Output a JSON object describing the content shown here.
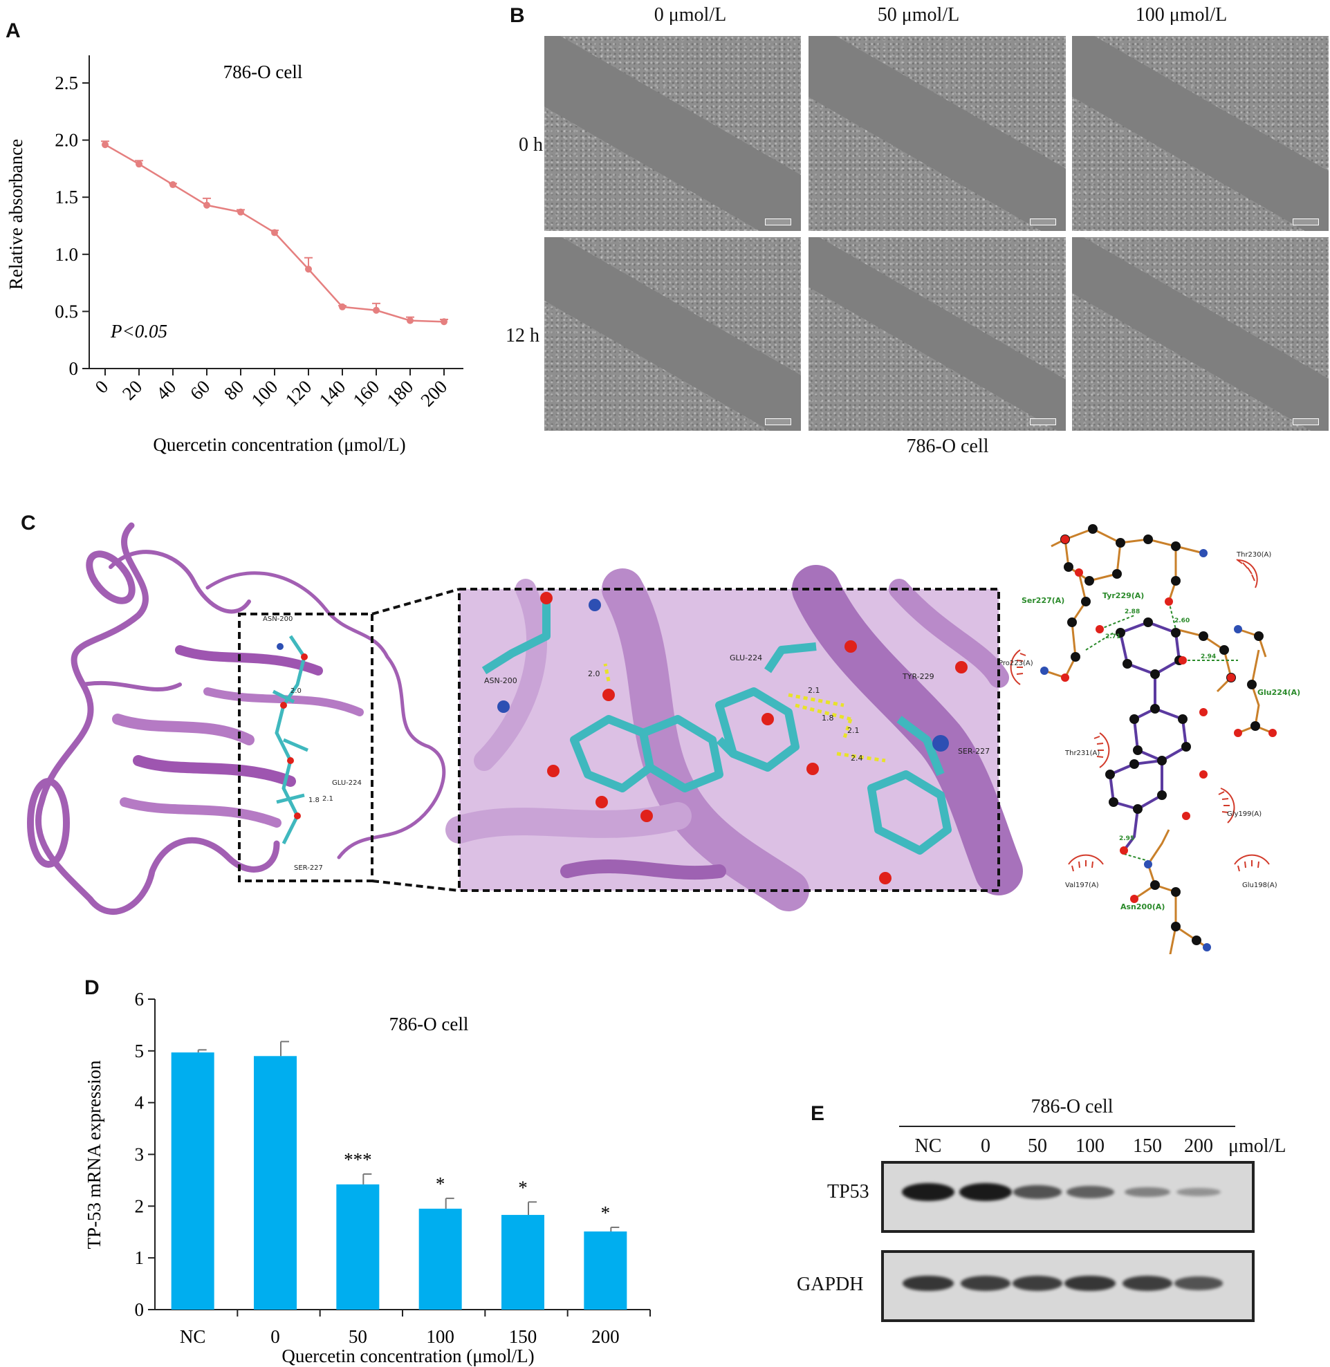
{
  "panels": {
    "A": "A",
    "B": "B",
    "C": "C",
    "D": "D",
    "E": "E"
  },
  "chart_data": [
    {
      "type": "line",
      "panel": "A",
      "title": "786-O cell",
      "annotation": "P<0.05",
      "xlabel": "Quercetin concentration (μmol/L)",
      "ylabel": "Relative absorbance",
      "x": [
        0,
        20,
        40,
        60,
        80,
        100,
        120,
        140,
        160,
        180,
        200
      ],
      "y": [
        1.96,
        1.79,
        1.61,
        1.43,
        1.37,
        1.19,
        0.87,
        0.54,
        0.51,
        0.42,
        0.41
      ],
      "yerr": [
        0.03,
        0.03,
        0.01,
        0.06,
        0.02,
        0.02,
        0.1,
        0.01,
        0.06,
        0.03,
        0.02
      ],
      "ylim": [
        0,
        2.5
      ],
      "yticks": [
        "0",
        "0.5",
        "1.0",
        "1.5",
        "2.0",
        "2.5"
      ],
      "xticks": [
        "0",
        "20",
        "40",
        "60",
        "80",
        "100",
        "120",
        "140",
        "160",
        "180",
        "200"
      ],
      "color": "#e57f7f"
    },
    {
      "type": "bar",
      "panel": "D",
      "title": "786-O cell",
      "xlabel": "Quercetin concentration (μmol/L)",
      "ylabel": "TP-53 mRNA expression",
      "categories": [
        "NC",
        "0",
        "50",
        "100",
        "150",
        "200"
      ],
      "values": [
        4.97,
        4.9,
        2.42,
        1.95,
        1.83,
        1.51
      ],
      "err": [
        0.05,
        0.28,
        0.2,
        0.2,
        0.25,
        0.08
      ],
      "significance": [
        "",
        "",
        "***",
        "*",
        "*",
        "*"
      ],
      "ylim": [
        0,
        6
      ],
      "yticks": [
        "0",
        "1",
        "2",
        "3",
        "4",
        "5",
        "6"
      ],
      "color": "#00aeef"
    }
  ],
  "panelB": {
    "col_labels": [
      "0 μmol/L",
      "50 μmol/L",
      "100 μmol/L"
    ],
    "row_labels": [
      "0 h",
      "12 h"
    ],
    "caption": "786-O cell"
  },
  "panelC": {
    "overview_labels": [
      "ASN-200",
      "2.0",
      "GLU-224",
      "1.8",
      "2.1",
      "SER-227"
    ],
    "zoom_labels": [
      "ASN-200",
      "2.0",
      "GLU-224",
      "2.1",
      "1.8",
      "2.1",
      "2.4",
      "TYR-229",
      "SER-227"
    ],
    "ligplot_residues_green": [
      "Ser227(A)",
      "Tyr229(A)",
      "Glu224(A)",
      "Asn200(A)"
    ],
    "ligplot_residues_hydrophobic": [
      "Thr230(A)",
      "Pro223(A)",
      "Thr231(A)",
      "Gly199(A)",
      "Val197(A)",
      "Glu198(A)"
    ],
    "ligplot_distances": [
      "2.88",
      "2.60",
      "2.71",
      "2.94",
      "2.95"
    ],
    "colors": {
      "protein": "#a25fb3",
      "ligand": "#3fb8be",
      "oxygen": "#e0211a",
      "nitrogen": "#2d4fb3",
      "ligbond": "#5b3aa0",
      "resbond": "#c9802a",
      "hbond": "#2a8a2a"
    }
  },
  "panelE": {
    "header": "786-O cell",
    "lanes": [
      "NC",
      "0",
      "50",
      "100",
      "150",
      "200"
    ],
    "unit": "μmol/L",
    "rows": [
      "TP53",
      "GAPDH"
    ],
    "tp53_intensity": [
      1.0,
      1.0,
      0.6,
      0.5,
      0.28,
      0.15
    ],
    "gapdh_intensity": [
      0.8,
      0.75,
      0.75,
      0.8,
      0.75,
      0.6
    ]
  }
}
